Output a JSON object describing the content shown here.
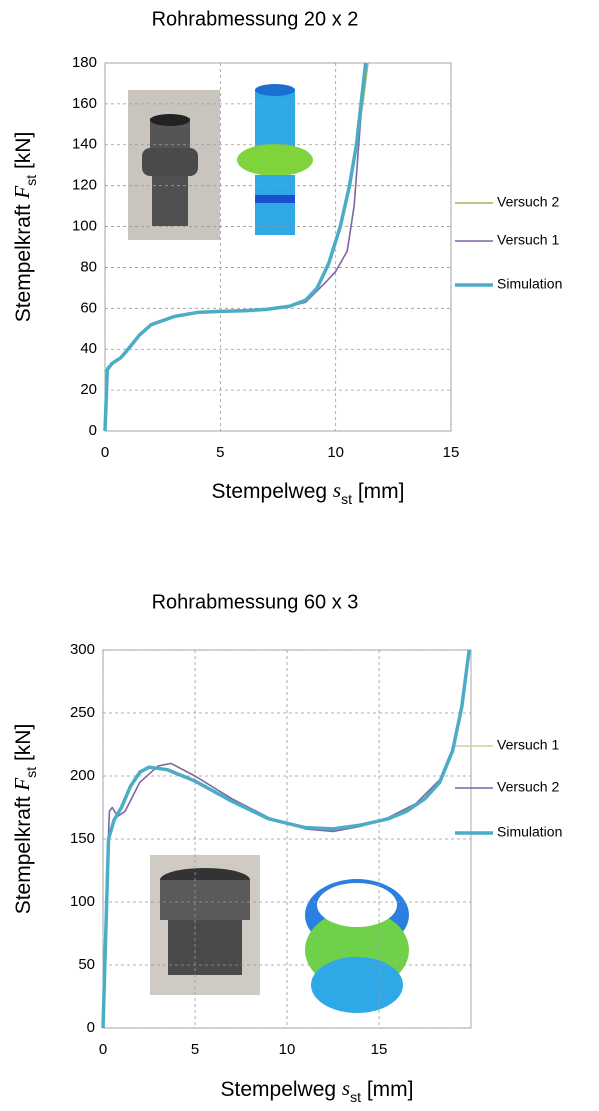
{
  "chart_data": [
    {
      "type": "line",
      "title": "Rohrabmessung 20 x 2",
      "xlabel": [
        "Stempelweg ",
        "s",
        "st",
        " [mm]"
      ],
      "ylabel": [
        "Stempelkraft ",
        "F",
        "st",
        "  [kN]"
      ],
      "xlim": [
        0,
        15
      ],
      "xticks": [
        0,
        5,
        10,
        15
      ],
      "ylim": [
        0,
        180
      ],
      "yticks": [
        0,
        20,
        40,
        60,
        80,
        100,
        120,
        140,
        160,
        180
      ],
      "grid": true,
      "series": [
        {
          "name": "Versuch 2",
          "color": "#9bbb59",
          "x": [
            0,
            0.1,
            0.3,
            0.7,
            1,
            1.5,
            2,
            3,
            4,
            5,
            6,
            7,
            8,
            8.7,
            9.2,
            9.7,
            10.2,
            10.6,
            10.9,
            11.2,
            11.4
          ],
          "values": [
            0,
            31,
            33,
            36,
            40,
            47,
            52,
            56,
            58,
            58.5,
            58.8,
            59.5,
            61,
            64,
            70,
            82,
            100,
            120,
            140,
            162,
            180
          ]
        },
        {
          "name": "Versuch 1",
          "color": "#8064a2",
          "x": [
            0,
            0.1,
            0.3,
            0.7,
            1,
            1.5,
            2,
            3,
            4,
            5,
            6,
            7,
            8,
            8.7,
            9.5,
            10,
            10.5,
            10.8,
            11,
            11.2,
            11.3
          ],
          "values": [
            0,
            31,
            33,
            36,
            40,
            47,
            52,
            56,
            58,
            58.5,
            58.8,
            59.5,
            61,
            63,
            72,
            78,
            88,
            110,
            140,
            170,
            180
          ]
        },
        {
          "name": "Simulation",
          "color": "#4bacc6",
          "x": [
            0,
            0.1,
            0.3,
            0.7,
            1,
            1.5,
            2,
            3,
            4,
            5,
            6,
            7,
            8,
            8.7,
            9.2,
            9.7,
            10.2,
            10.6,
            10.9,
            11.1,
            11.3
          ],
          "values": [
            0,
            30,
            33,
            36,
            40,
            47,
            52,
            56,
            58,
            58.5,
            58.8,
            59.5,
            61,
            64,
            70,
            82,
            100,
            120,
            140,
            160,
            180
          ]
        }
      ]
    },
    {
      "type": "line",
      "title": "Rohrabmessung 60 x 3",
      "xlabel": [
        "Stempelweg ",
        "s",
        "st",
        " [mm]"
      ],
      "ylabel": [
        "Stempelkraft ",
        "F",
        "st",
        "  [kN]"
      ],
      "xlim": [
        0,
        20
      ],
      "xticks": [
        0,
        5,
        10,
        15
      ],
      "ylim": [
        0,
        300
      ],
      "yticks": [
        0,
        50,
        100,
        150,
        200,
        250,
        300
      ],
      "grid": true,
      "series": [
        {
          "name": "Versuch 1",
          "color": "#c3d69b",
          "x": [
            0,
            0.3,
            0.6,
            1,
            1.5,
            2,
            2.5,
            3.5,
            5,
            7,
            9,
            11,
            12.5,
            14,
            15.5,
            16.5,
            17.5,
            18.3,
            19,
            19.5,
            19.9
          ],
          "values": [
            0,
            148,
            165,
            176,
            193,
            204,
            207,
            205,
            196,
            180,
            166,
            159,
            158,
            161,
            166,
            172,
            182,
            195,
            221,
            256,
            300
          ]
        },
        {
          "name": "Versuch 2",
          "color": "#8064a2",
          "x": [
            0,
            0.2,
            0.35,
            0.5,
            0.8,
            1.2,
            2,
            3,
            3.7,
            5,
            7,
            9,
            11,
            12.5,
            14,
            15.5,
            17,
            18.3,
            19,
            19.5,
            19.9
          ],
          "values": [
            0,
            120,
            172,
            175,
            168,
            172,
            195,
            208,
            210,
            200,
            182,
            167,
            158,
            156,
            160,
            167,
            178,
            197,
            222,
            258,
            300
          ]
        },
        {
          "name": "Simulation",
          "color": "#4bacc6",
          "x": [
            0,
            0.3,
            0.6,
            1,
            1.5,
            2,
            2.5,
            3.5,
            5,
            7,
            9,
            11,
            12.5,
            14,
            15.5,
            16.5,
            17.5,
            18.3,
            19,
            19.5,
            19.9
          ],
          "values": [
            0,
            150,
            165,
            175,
            192,
            203,
            207,
            205,
            196,
            180,
            166,
            159,
            158,
            161,
            166,
            172,
            182,
            195,
            220,
            255,
            300
          ]
        }
      ]
    }
  ]
}
